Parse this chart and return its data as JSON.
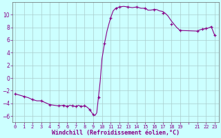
{
  "line_color": "#880088",
  "marker_color": "#880088",
  "bg_color": "#ccffff",
  "grid_color": "#aacccc",
  "font_color": "#880088",
  "xlabel": "Windchill (Refroidissement éolien,°C)",
  "ylim": [
    -7,
    12
  ],
  "yticks": [
    -6,
    -4,
    -2,
    0,
    2,
    4,
    6,
    8,
    10
  ],
  "hours_line": [
    0,
    0.5,
    1,
    1.5,
    2,
    2.5,
    3,
    3.5,
    4,
    4.5,
    5,
    5.3,
    5.6,
    6,
    6.3,
    6.6,
    7,
    7.3,
    7.6,
    8,
    8.3,
    8.6,
    8.8,
    9.0,
    9.2,
    9.4,
    9.6,
    9.8,
    10.0,
    10.3,
    10.6,
    11.0,
    11.3,
    11.6,
    12,
    12.5,
    13,
    13.5,
    14,
    14.5,
    15,
    15.3,
    15.6,
    16,
    16.3,
    16.6,
    17,
    17.3,
    17.6,
    18,
    18.3,
    18.6,
    19,
    21,
    21.3,
    21.6,
    22,
    22.3,
    22.6,
    23
  ],
  "temp_line": [
    -2.5,
    -2.7,
    -2.9,
    -3.1,
    -3.4,
    -3.6,
    -3.6,
    -3.9,
    -4.2,
    -4.3,
    -4.4,
    -4.35,
    -4.3,
    -4.5,
    -4.3,
    -4.4,
    -4.5,
    -4.3,
    -4.5,
    -4.4,
    -4.6,
    -5.0,
    -5.4,
    -5.8,
    -5.9,
    -5.5,
    -3.0,
    -0.5,
    3.0,
    5.5,
    7.5,
    9.5,
    10.6,
    11.0,
    11.2,
    11.3,
    11.2,
    11.1,
    11.2,
    11.0,
    11.0,
    10.7,
    10.7,
    10.8,
    10.8,
    10.6,
    10.5,
    10.2,
    9.8,
    9.0,
    8.5,
    8.0,
    7.5,
    7.4,
    7.6,
    7.7,
    7.8,
    7.9,
    8.1,
    6.7
  ],
  "marker_x": [
    0,
    1,
    2,
    3,
    4,
    5,
    5.6,
    6,
    6.6,
    7,
    7.6,
    8,
    8.6,
    9.0,
    9.6,
    10.3,
    11.0,
    11.6,
    12,
    13,
    14,
    15,
    16,
    17,
    18,
    19,
    21,
    21.6,
    22,
    22.6,
    23
  ],
  "marker_y": [
    -2.5,
    -2.9,
    -3.4,
    -3.6,
    -4.2,
    -4.4,
    -4.3,
    -4.5,
    -4.4,
    -4.5,
    -4.5,
    -4.4,
    -5.0,
    -5.8,
    -3.0,
    5.5,
    9.5,
    11.0,
    11.2,
    11.2,
    11.2,
    11.0,
    10.8,
    10.2,
    8.5,
    7.5,
    7.4,
    7.7,
    7.8,
    8.1,
    6.7
  ]
}
